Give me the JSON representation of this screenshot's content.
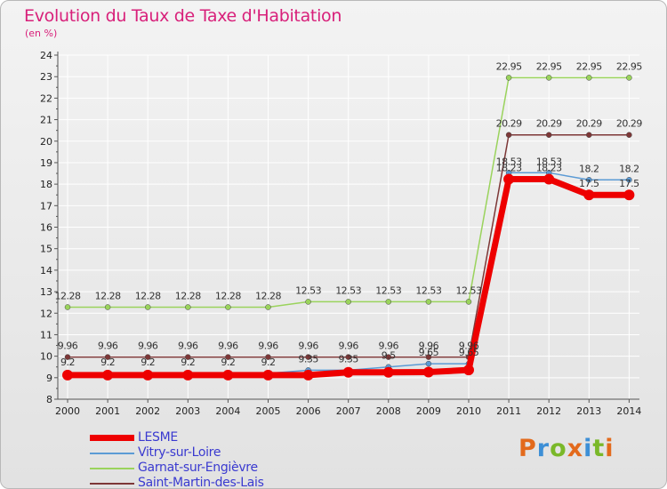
{
  "colors": {
    "title": "#d8207a",
    "legend_text": "#3a3ad0",
    "grid": "#ffffff",
    "axis": "#555555"
  },
  "logo": {
    "text": "Proxiti",
    "letter_colors": [
      "#e36a1c",
      "#3d8fd6",
      "#7ab829",
      "#e36a1c",
      "#3d8fd6",
      "#7ab829",
      "#e36a1c"
    ]
  },
  "chart_data": {
    "type": "line",
    "title": "Evolution du Taux de Taxe d'Habitation",
    "subtitle": "(en %)",
    "xlabel": "",
    "ylabel": "(en %)",
    "ylim": [
      8,
      24
    ],
    "y_ticks": [
      "8",
      "9",
      "10",
      "11",
      "12",
      "13",
      "14",
      "15",
      "16",
      "17",
      "18",
      "19",
      "20",
      "21",
      "22",
      "23",
      "24"
    ],
    "categories": [
      "2000",
      "2001",
      "2002",
      "2003",
      "2004",
      "2005",
      "2006",
      "2007",
      "2008",
      "2009",
      "2010",
      "2011",
      "2012",
      "2013",
      "2014"
    ],
    "grid": true,
    "legend_position": "bottom-left",
    "series": [
      {
        "name": "LESME",
        "color": "#ee0000",
        "values": [
          9.12,
          9.12,
          9.12,
          9.12,
          9.12,
          9.12,
          9.12,
          9.25,
          9.25,
          9.26,
          9.36,
          18.23,
          18.23,
          17.5,
          17.5
        ],
        "labels": [
          null,
          null,
          null,
          null,
          null,
          null,
          null,
          null,
          null,
          null,
          null,
          "18.23",
          "18.23",
          "17.5",
          "17.5"
        ]
      },
      {
        "name": "Vitry-sur-Loire",
        "color": "#5b9bd5",
        "values": [
          9.2,
          9.2,
          9.2,
          9.2,
          9.2,
          9.2,
          9.35,
          9.35,
          9.5,
          9.65,
          9.65,
          18.53,
          18.53,
          18.2,
          18.2
        ],
        "labels": [
          "9.2",
          "9.2",
          "9.2",
          "9.2",
          "9.2",
          "9.2",
          "9.35",
          "9.35",
          "9.5",
          "9.65",
          "9.65",
          "18.53",
          "18.53",
          "18.2",
          "18.2"
        ]
      },
      {
        "name": "Garnat-sur-Engièvre",
        "color": "#9ad35c",
        "values": [
          12.28,
          12.28,
          12.28,
          12.28,
          12.28,
          12.28,
          12.53,
          12.53,
          12.53,
          12.53,
          12.53,
          22.95,
          22.95,
          22.95,
          22.95
        ],
        "labels": [
          "12.28",
          "12.28",
          "12.28",
          "12.28",
          "12.28",
          "12.28",
          "12.53",
          "12.53",
          "12.53",
          "12.53",
          "12.53",
          "22.95",
          "22.95",
          "22.95",
          "22.95"
        ]
      },
      {
        "name": "Saint-Martin-des-Lais",
        "color": "#7d3737",
        "values": [
          9.96,
          9.96,
          9.96,
          9.96,
          9.96,
          9.96,
          9.96,
          9.96,
          9.96,
          9.96,
          9.96,
          20.29,
          20.29,
          20.29,
          20.29
        ],
        "labels": [
          "9.96",
          "9.96",
          "9.96",
          "9.96",
          "9.96",
          "9.96",
          "9.96",
          "9.96",
          "9.96",
          "9.96",
          "9.96",
          "20.29",
          "20.29",
          "20.29",
          "20.29"
        ]
      }
    ]
  }
}
